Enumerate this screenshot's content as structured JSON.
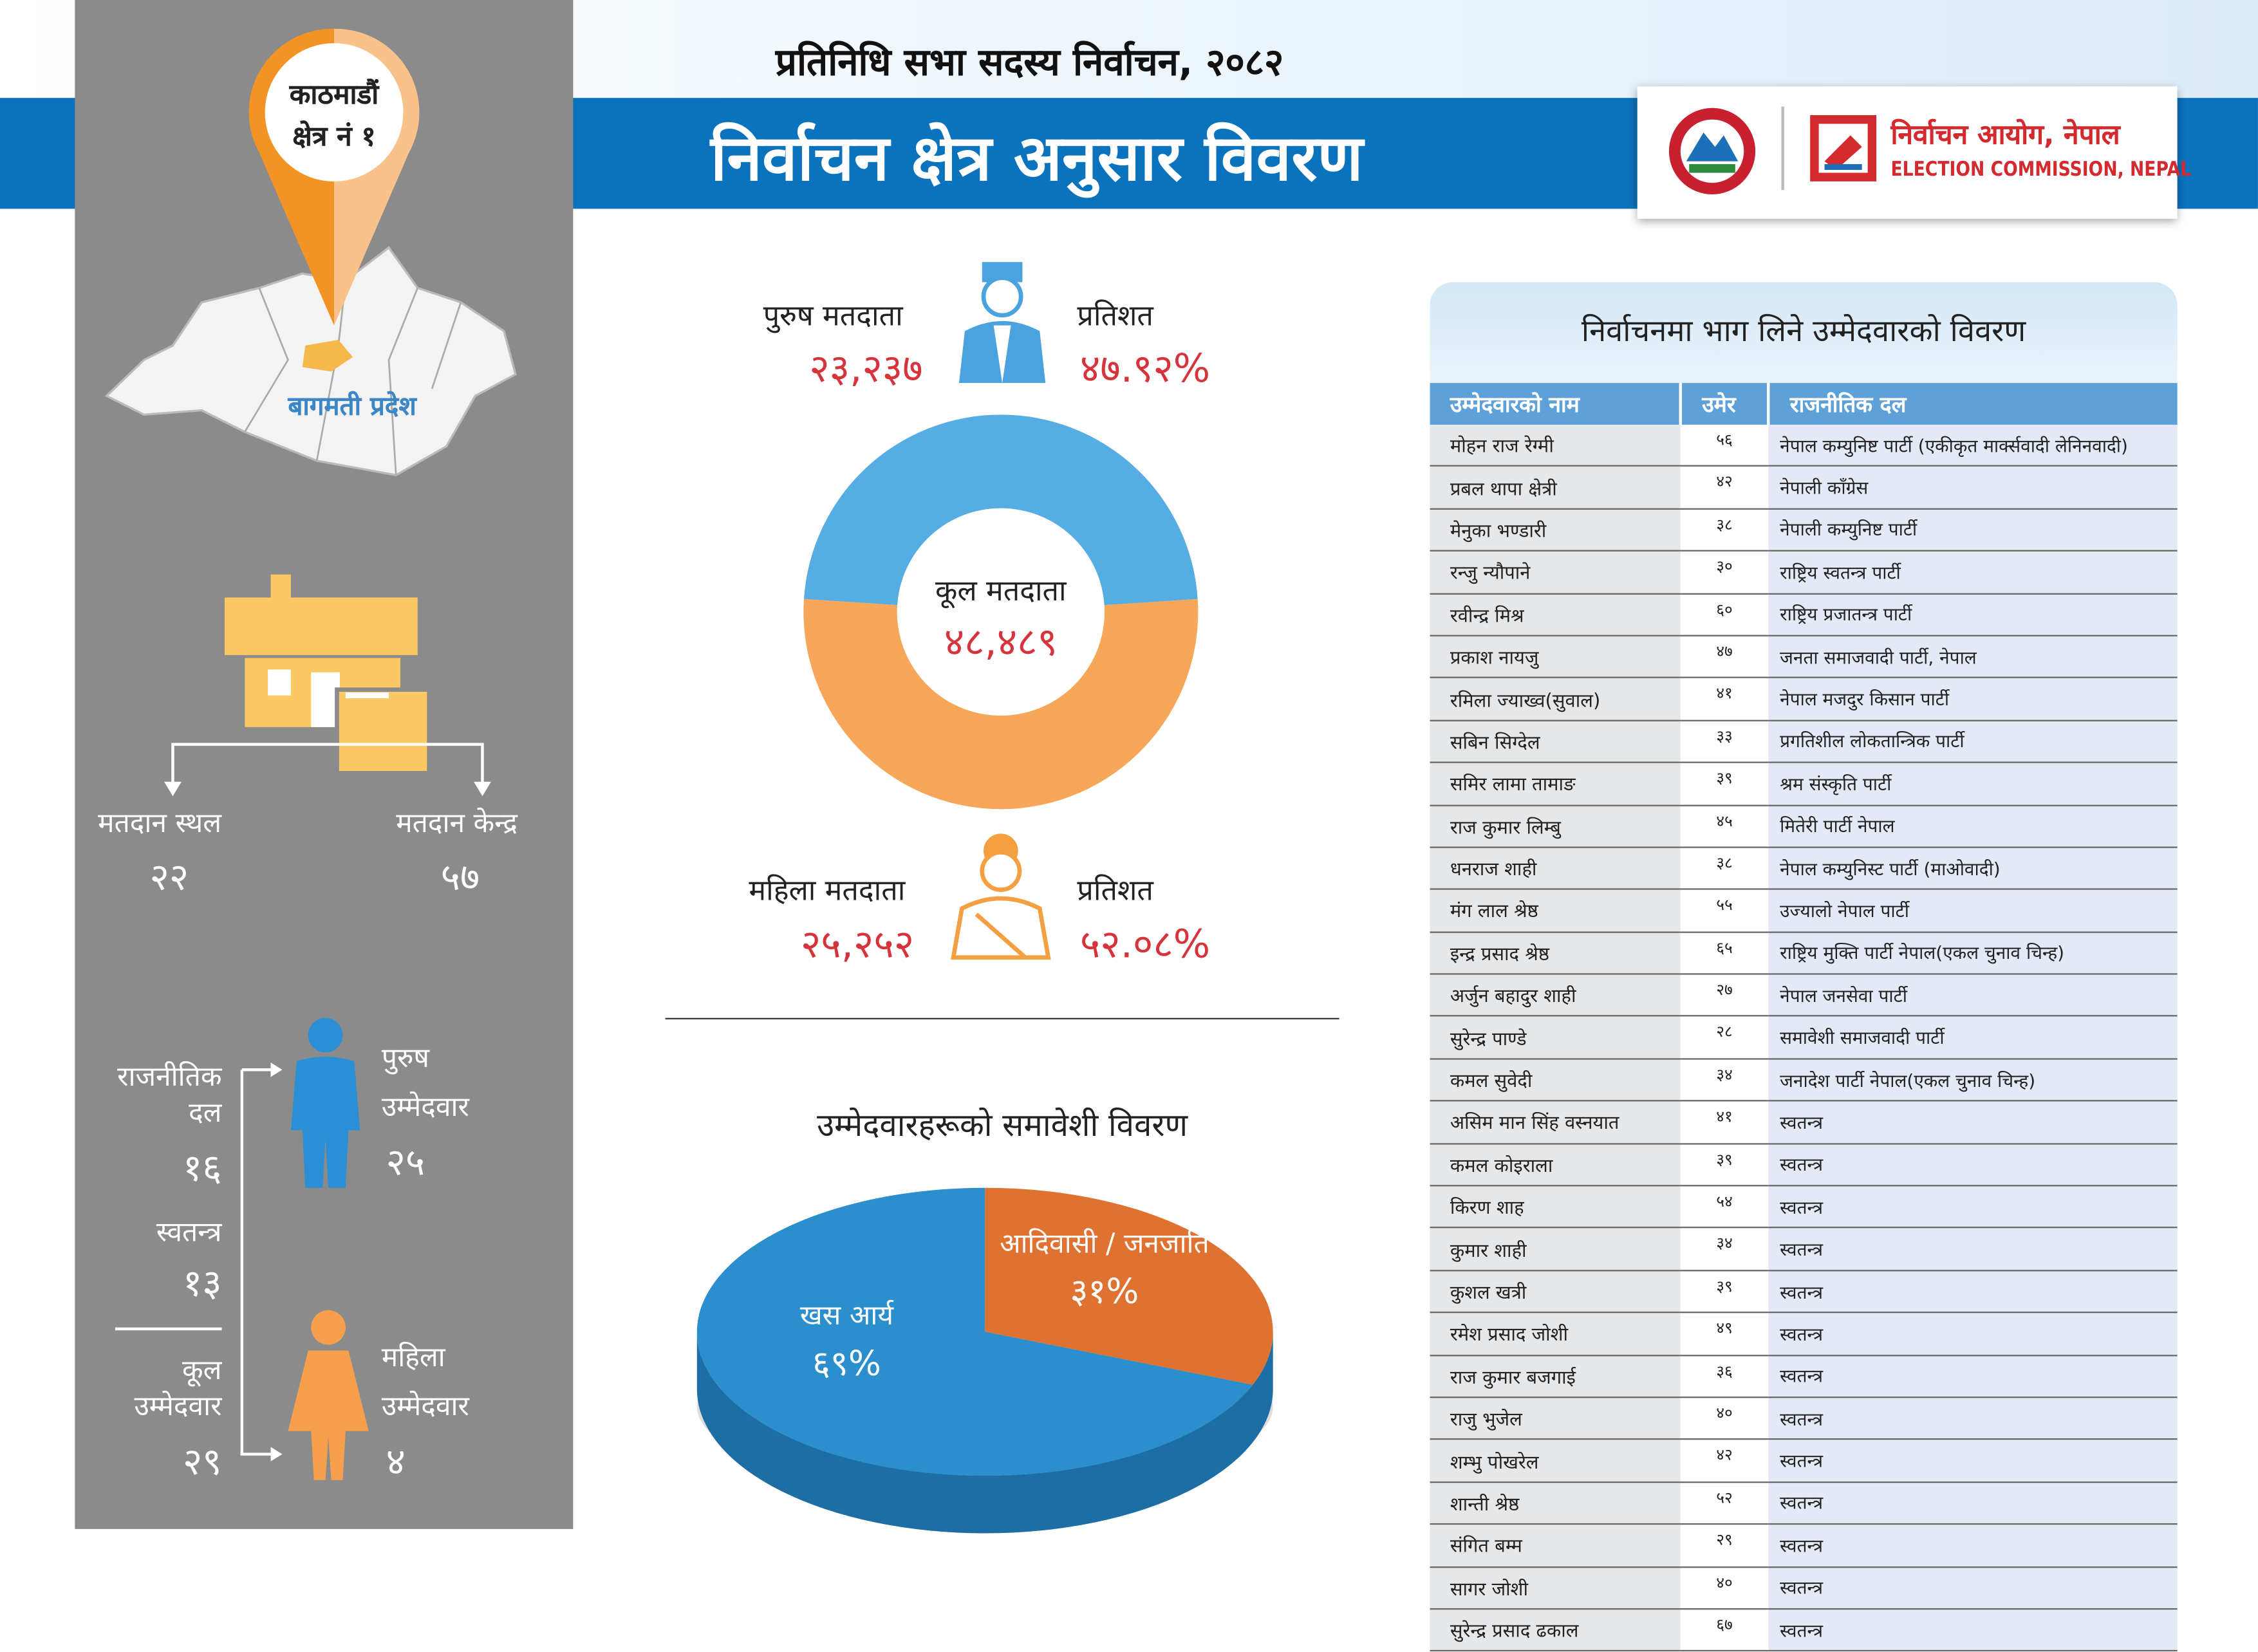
{
  "header": {
    "subtitle": "प्रतिनिधि सभा सदस्य निर्वाचन, २०८२",
    "title": "निर्वाचन क्षेत्र अनुसार विवरण",
    "org_name_np": "निर्वाचन आयोग, नेपाल",
    "org_name_en": "ELECTION COMMISSION, NEPAL"
  },
  "constituency": {
    "line1": "काठमाडौं",
    "line2": "क्षेत्र नं १",
    "province": "बागमती प्रदेश"
  },
  "polling": {
    "place_label": "मतदान स्थल",
    "place_value": "२२",
    "center_label": "मतदान केन्द्र",
    "center_value": "५७"
  },
  "candidates_summary": {
    "party_label_1": "राजनीतिक",
    "party_label_2": "दल",
    "party_value": "१६",
    "independent_label": "स्वतन्त्र",
    "independent_value": "१३",
    "total_label_1": "कूल",
    "total_label_2": "उम्मेदवार",
    "total_value": "२९",
    "male_label_1": "पुरुष",
    "male_label_2": "उम्मेदवार",
    "male_value": "२५",
    "female_label_1": "महिला",
    "female_label_2": "उम्मेदवार",
    "female_value": "४"
  },
  "voters": {
    "male_label": "पुरुष मतदाता",
    "male_value": "२३,२३७",
    "male_pct_label": "प्रतिशत",
    "male_pct": "४७.९२%",
    "female_label": "महिला मतदाता",
    "female_value": "२५,२५२",
    "female_pct_label": "प्रतिशत",
    "female_pct": "५२.०८%",
    "total_label": "कूल मतदाता",
    "total_value": "४८,४८९"
  },
  "colors": {
    "blue": "#0b72bd",
    "male": "#55ade3",
    "female": "#f7a75a",
    "khas": "#2a8fcc",
    "janajati": "#e07231",
    "gray_panel": "#8b8b8c"
  },
  "chart_data": [
    {
      "type": "pie",
      "title": "",
      "categories": [
        "पुरुष मतदाता",
        "महिला मतदाता"
      ],
      "values": [
        47.92,
        52.08
      ],
      "style": "donut"
    },
    {
      "type": "pie",
      "title": "उम्मेदवारहरूको समावेशी विवरण",
      "categories": [
        "आदिवासी / जनजाति",
        "खस आर्य"
      ],
      "values": [
        31,
        69
      ],
      "labels": [
        "३१%",
        "६९%"
      ],
      "style": "3d"
    }
  ],
  "table": {
    "title": "निर्वाचनमा भाग लिने उम्मेदवारको विवरण",
    "columns": [
      "उम्मेदवारको नाम",
      "उमेर",
      "राजनीतिक दल"
    ],
    "rows": [
      [
        "मोहन राज रेग्मी",
        "५६",
        "नेपाल कम्युनिष्ट पार्टी (एकीकृत मार्क्सवादी लेनिनवादी)"
      ],
      [
        "प्रबल  थापा क्षेत्री",
        "४२",
        "नेपाली काँग्रेस"
      ],
      [
        "मेनुका भण्डारी",
        "३८",
        "नेपाली कम्युनिष्ट पार्टी"
      ],
      [
        "रन्जु न्यौपाने",
        "३०",
        "राष्ट्रिय स्वतन्त्र पार्टी"
      ],
      [
        "रवीन्द्र मिश्र",
        "६०",
        "राष्ट्रिय प्रजातन्त्र पार्टी"
      ],
      [
        "प्रकाश नायजु",
        "४७",
        "जनता समाजवादी पार्टी, नेपाल"
      ],
      [
        "रमिला ज्याख्व(सुवाल)",
        "४१",
        "नेपाल मजदुर किसान पार्टी"
      ],
      [
        "सबिन सिग्देल",
        "३३",
        "प्रगतिशील लोकतान्त्रिक पार्टी"
      ],
      [
        "समिर  लामा तामाङ",
        "३९",
        "श्रम संस्कृति पार्टी"
      ],
      [
        "राज कुमार लिम्बु",
        "४५",
        "मितेरी पार्टी नेपाल"
      ],
      [
        "धनराज शाही",
        "३८",
        "नेपाल कम्युनिस्ट पार्टी (माओवादी)"
      ],
      [
        "मंग लाल श्रेष्ठ",
        "५५",
        "उज्यालो नेपाल पार्टी"
      ],
      [
        "इन्द्र प्रसाद श्रेष्ठ",
        "६५",
        "राष्ट्रिय मुक्ति पार्टी नेपाल(एकल चुनाव चिन्ह)"
      ],
      [
        "अर्जुन बहादुर शाही",
        "२७",
        "नेपाल जनसेवा पार्टी"
      ],
      [
        "सुरेन्द्र पाण्डे",
        "२८",
        "समावेशी समाजवादी पार्टी"
      ],
      [
        "कमल सुवेदी",
        "३४",
        "जनादेश पार्टी नेपाल(एकल चुनाव चिन्ह)"
      ],
      [
        "असिम मान सिंह वस्नयात",
        "४१",
        "स्वतन्त्र"
      ],
      [
        "कमल कोइराला",
        "३९",
        "स्वतन्त्र"
      ],
      [
        "किरण शाह",
        "५४",
        "स्वतन्त्र"
      ],
      [
        "कुमार शाही",
        "३४",
        "स्वतन्त्र"
      ],
      [
        "कुशल खत्री",
        "३९",
        "स्वतन्त्र"
      ],
      [
        "रमेश प्रसाद जोशी",
        "४९",
        "स्वतन्त्र"
      ],
      [
        "राज कुमार बजगाई",
        "३६",
        "स्वतन्त्र"
      ],
      [
        "राजु भुजेल",
        "४०",
        "स्वतन्त्र"
      ],
      [
        "शम्भु पोखरेल",
        "४२",
        "स्वतन्त्र"
      ],
      [
        "शान्ती श्रेष्ठ",
        "५२",
        "स्वतन्त्र"
      ],
      [
        "संगित बम्म",
        "२९",
        "स्वतन्त्र"
      ],
      [
        "सागर जोशी",
        "४०",
        "स्वतन्त्र"
      ],
      [
        "सुरेन्द्र प्रसाद ढकाल",
        "६७",
        "स्वतन्त्र"
      ]
    ]
  }
}
